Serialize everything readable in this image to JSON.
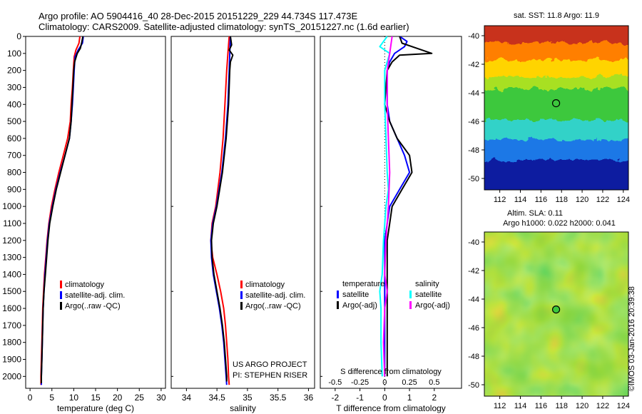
{
  "header": {
    "line1": "Argo profile: AO 5904416_40 28-Dec-2015 20151229_229 44.734S 117.473E",
    "line2": "Climatology: CARS2009. Satellite-adjusted climatology: synTS_20151227.nc (1.6d earlier)"
  },
  "copyright": "©IMOS 03-Jan-2016 20:39:38",
  "colors": {
    "climatology": "#ff0000",
    "satellite": "#0000ff",
    "argo": "#000000",
    "sal_satellite": "#00ffff",
    "sal_argo": "#ff00ff"
  },
  "chart_data": [
    {
      "type": "line",
      "panel": "temperature",
      "xlabel": "temperature (deg C)",
      "ylabel": "",
      "xlim": [
        -1,
        31
      ],
      "ylim": [
        2070,
        0
      ],
      "xticks": [
        "0",
        "5",
        "10",
        "15",
        "20",
        "25",
        "30"
      ],
      "yticks": [
        "0",
        "100",
        "200",
        "300",
        "400",
        "500",
        "600",
        "700",
        "800",
        "900",
        "1000",
        "1100",
        "1200",
        "1300",
        "1400",
        "1500",
        "1600",
        "1700",
        "1800",
        "1900",
        "2000"
      ],
      "legend": [
        "climatology",
        "satellite-adj. clim.",
        "Argo(..raw -QC)"
      ],
      "series": [
        {
          "name": "climatology",
          "color": "#ff0000",
          "points": [
            [
              11.4,
              0
            ],
            [
              11.2,
              40
            ],
            [
              10.5,
              80
            ],
            [
              10.1,
              120
            ],
            [
              9.9,
              200
            ],
            [
              9.7,
              300
            ],
            [
              9.4,
              400
            ],
            [
              9.2,
              500
            ],
            [
              8.6,
              600
            ],
            [
              7.6,
              700
            ],
            [
              6.6,
              800
            ],
            [
              5.7,
              900
            ],
            [
              4.9,
              1000
            ],
            [
              4.3,
              1100
            ],
            [
              3.9,
              1200
            ],
            [
              3.6,
              1300
            ],
            [
              3.3,
              1400
            ],
            [
              3.1,
              1500
            ],
            [
              2.9,
              1600
            ],
            [
              2.8,
              1700
            ],
            [
              2.7,
              1800
            ],
            [
              2.6,
              1900
            ],
            [
              2.5,
              2000
            ],
            [
              2.5,
              2050
            ]
          ]
        },
        {
          "name": "satellite-adj. clim.",
          "color": "#0000ff",
          "points": [
            [
              12.2,
              0
            ],
            [
              12.0,
              40
            ],
            [
              11.0,
              80
            ],
            [
              10.3,
              120
            ],
            [
              10.1,
              200
            ],
            [
              9.9,
              300
            ],
            [
              9.7,
              400
            ],
            [
              9.4,
              500
            ],
            [
              9.0,
              600
            ],
            [
              8.0,
              700
            ],
            [
              6.9,
              800
            ],
            [
              5.9,
              900
            ],
            [
              5.1,
              1000
            ],
            [
              4.4,
              1100
            ],
            [
              4.0,
              1200
            ],
            [
              3.7,
              1300
            ],
            [
              3.4,
              1400
            ],
            [
              3.2,
              1500
            ],
            [
              3.0,
              1600
            ],
            [
              2.9,
              1700
            ],
            [
              2.8,
              1800
            ],
            [
              2.7,
              1900
            ],
            [
              2.6,
              2000
            ],
            [
              2.6,
              2050
            ]
          ]
        },
        {
          "name": "Argo(..raw -QC)",
          "color": "#000000",
          "points": [
            [
              12.1,
              0
            ],
            [
              11.8,
              40
            ],
            [
              11.5,
              70
            ],
            [
              10.8,
              100
            ],
            [
              10.2,
              150
            ],
            [
              10.0,
              200
            ],
            [
              9.8,
              300
            ],
            [
              9.6,
              400
            ],
            [
              9.4,
              500
            ],
            [
              9.0,
              600
            ],
            [
              8.0,
              700
            ],
            [
              7.0,
              800
            ],
            [
              6.0,
              900
            ],
            [
              5.2,
              1000
            ],
            [
              4.5,
              1100
            ],
            [
              4.1,
              1200
            ],
            [
              3.8,
              1300
            ],
            [
              3.5,
              1400
            ],
            [
              3.2,
              1500
            ],
            [
              3.0,
              1600
            ],
            [
              2.9,
              1700
            ],
            [
              2.8,
              1800
            ],
            [
              2.7,
              1900
            ],
            [
              2.6,
              2000
            ],
            [
              2.6,
              2040
            ]
          ]
        }
      ]
    },
    {
      "type": "line",
      "panel": "salinity",
      "xlabel": "salinity",
      "ylabel": "",
      "xlim": [
        33.75,
        36.1
      ],
      "ylim": [
        2070,
        0
      ],
      "xticks": [
        "34",
        "34.5",
        "35",
        "35.5",
        "36"
      ],
      "legend": [
        "climatology",
        "satellite-adj. clim.",
        "Argo(..raw -QC)"
      ],
      "annotation": [
        "US ARGO PROJECT",
        "PI: STEPHEN RISER"
      ],
      "series": [
        {
          "name": "climatology",
          "color": "#ff0000",
          "points": [
            [
              34.7,
              0
            ],
            [
              34.68,
              100
            ],
            [
              34.66,
              200
            ],
            [
              34.63,
              400
            ],
            [
              34.6,
              600
            ],
            [
              34.55,
              800
            ],
            [
              34.48,
              1000
            ],
            [
              34.42,
              1100
            ],
            [
              34.4,
              1200
            ],
            [
              34.43,
              1300
            ],
            [
              34.5,
              1400
            ],
            [
              34.56,
              1500
            ],
            [
              34.61,
              1600
            ],
            [
              34.64,
              1700
            ],
            [
              34.66,
              1800
            ],
            [
              34.68,
              1900
            ],
            [
              34.69,
              2000
            ],
            [
              34.7,
              2050
            ]
          ]
        },
        {
          "name": "satellite-adj. clim.",
          "color": "#0000ff",
          "points": [
            [
              34.72,
              0
            ],
            [
              34.71,
              100
            ],
            [
              34.7,
              200
            ],
            [
              34.68,
              400
            ],
            [
              34.64,
              600
            ],
            [
              34.58,
              800
            ],
            [
              34.49,
              1000
            ],
            [
              34.43,
              1100
            ],
            [
              34.4,
              1200
            ],
            [
              34.41,
              1300
            ],
            [
              34.44,
              1400
            ],
            [
              34.49,
              1500
            ],
            [
              34.54,
              1600
            ],
            [
              34.58,
              1700
            ],
            [
              34.61,
              1800
            ],
            [
              34.63,
              1900
            ],
            [
              34.65,
              2000
            ],
            [
              34.66,
              2050
            ]
          ]
        },
        {
          "name": "Argo(..raw -QC)",
          "color": "#000000",
          "points": [
            [
              34.72,
              0
            ],
            [
              34.74,
              50
            ],
            [
              34.7,
              80
            ],
            [
              34.76,
              110
            ],
            [
              34.72,
              150
            ],
            [
              34.71,
              200
            ],
            [
              34.69,
              400
            ],
            [
              34.65,
              600
            ],
            [
              34.59,
              800
            ],
            [
              34.5,
              1000
            ],
            [
              34.44,
              1100
            ],
            [
              34.41,
              1200
            ],
            [
              34.42,
              1300
            ],
            [
              34.45,
              1400
            ],
            [
              34.5,
              1500
            ],
            [
              34.55,
              1600
            ],
            [
              34.59,
              1700
            ],
            [
              34.62,
              1800
            ],
            [
              34.64,
              1900
            ],
            [
              34.66,
              2000
            ],
            [
              34.66,
              2030
            ]
          ]
        }
      ]
    },
    {
      "type": "line",
      "panel": "difference",
      "xlabel": "T difference from climatology",
      "xlabel_top": "S difference from climatology",
      "xlim": [
        -2.6,
        3.1
      ],
      "ylim": [
        2070,
        0
      ],
      "xticks": [
        "-2",
        "-1",
        "0",
        "1",
        "2"
      ],
      "sticks": [
        "-0.5",
        "-0.25",
        "0",
        "0.25",
        "0.5"
      ],
      "legend": {
        "temperature": [
          "temperature",
          "satellite",
          "Argo(-adj)"
        ],
        "salinity": [
          "salinity",
          "satellite",
          "Argo(-adj)"
        ]
      },
      "series": [
        {
          "name": "T satellite",
          "color": "#0000ff",
          "points": [
            [
              0.6,
              0
            ],
            [
              0.9,
              30
            ],
            [
              0.8,
              60
            ],
            [
              0.4,
              100
            ],
            [
              0.2,
              150
            ],
            [
              0.1,
              200
            ],
            [
              0.1,
              400
            ],
            [
              0.2,
              500
            ],
            [
              0.5,
              600
            ],
            [
              0.8,
              700
            ],
            [
              1.0,
              800
            ],
            [
              0.6,
              900
            ],
            [
              0.2,
              1000
            ],
            [
              0.1,
              1100
            ],
            [
              0.0,
              1200
            ],
            [
              0.0,
              1400
            ],
            [
              0.0,
              1600
            ],
            [
              0.0,
              1800
            ],
            [
              0.0,
              2000
            ]
          ]
        },
        {
          "name": "T Argo(-adj)",
          "color": "#000000",
          "points": [
            [
              0.6,
              0
            ],
            [
              0.7,
              40
            ],
            [
              1.3,
              70
            ],
            [
              1.9,
              100
            ],
            [
              0.6,
              110
            ],
            [
              0.3,
              150
            ],
            [
              0.1,
              200
            ],
            [
              0.0,
              400
            ],
            [
              0.2,
              500
            ],
            [
              0.5,
              600
            ],
            [
              1.0,
              700
            ],
            [
              1.1,
              800
            ],
            [
              0.7,
              900
            ],
            [
              0.3,
              1000
            ],
            [
              0.2,
              1100
            ],
            [
              0.1,
              1200
            ],
            [
              0.1,
              1400
            ],
            [
              0.1,
              1600
            ],
            [
              0.1,
              1800
            ],
            [
              0.1,
              2000
            ]
          ]
        },
        {
          "name": "S satellite",
          "color": "#00ffff",
          "points": [
            [
              0.1,
              0
            ],
            [
              -0.2,
              60
            ],
            [
              0.2,
              100
            ],
            [
              0.0,
              200
            ],
            [
              0.0,
              400
            ],
            [
              0.05,
              600
            ],
            [
              0.1,
              800
            ],
            [
              0.15,
              900
            ],
            [
              0.05,
              1000
            ],
            [
              -0.05,
              1200
            ],
            [
              -0.1,
              1400
            ],
            [
              -0.2,
              1500
            ],
            [
              -0.15,
              1600
            ],
            [
              -0.15,
              1800
            ],
            [
              -0.1,
              2000
            ]
          ]
        },
        {
          "name": "S Argo(-adj)",
          "color": "#ff00ff",
          "points": [
            [
              0.3,
              0
            ],
            [
              0.2,
              100
            ],
            [
              0.1,
              200
            ],
            [
              0.1,
              400
            ],
            [
              0.15,
              600
            ],
            [
              0.2,
              800
            ],
            [
              0.15,
              1000
            ],
            [
              0.05,
              1200
            ],
            [
              0.0,
              1400
            ],
            [
              0.1,
              1500
            ],
            [
              0.0,
              1600
            ],
            [
              -0.05,
              1800
            ],
            [
              0.0,
              2000
            ]
          ]
        }
      ]
    },
    {
      "type": "heatmap",
      "panel": "sst-map",
      "title": "sat. SST: 11.8 Argo: 11.9",
      "xlim": [
        110.5,
        124.5
      ],
      "ylim": [
        -50.8,
        -39.3
      ],
      "xticks": [
        "112",
        "114",
        "116",
        "118",
        "120",
        "122",
        "124"
      ],
      "yticks": [
        "-40",
        "-42",
        "-44",
        "-46",
        "-48",
        "-50"
      ],
      "marker": {
        "lon": 117.47,
        "lat": -44.73
      },
      "bands": [
        {
          "from": -39.3,
          "to": -40.8,
          "color": "#c8321e"
        },
        {
          "from": -40.8,
          "to": -42.0,
          "color": "#ff7f00"
        },
        {
          "from": -42.0,
          "to": -43.2,
          "color": "#ffd400"
        },
        {
          "from": -43.2,
          "to": -44.0,
          "color": "#a8e020"
        },
        {
          "from": -44.0,
          "to": -46.2,
          "color": "#3cc83c"
        },
        {
          "from": -46.2,
          "to": -47.6,
          "color": "#30d2c8"
        },
        {
          "from": -47.6,
          "to": -49.0,
          "color": "#1e78e6"
        },
        {
          "from": -49.0,
          "to": -50.8,
          "color": "#0a1ea0"
        }
      ]
    },
    {
      "type": "heatmap",
      "panel": "sla-map",
      "title": "Altim. SLA: 0.11",
      "subtitle": "Argo h1000: 0.022 h2000: 0.041",
      "xlim": [
        110.5,
        124.5
      ],
      "ylim": [
        -50.8,
        -39.3
      ],
      "xticks": [
        "112",
        "114",
        "116",
        "118",
        "120",
        "122",
        "124"
      ],
      "yticks": [
        "-40",
        "-42",
        "-44",
        "-46",
        "-48",
        "-50"
      ],
      "marker": {
        "lon": 117.47,
        "lat": -44.73
      }
    }
  ]
}
